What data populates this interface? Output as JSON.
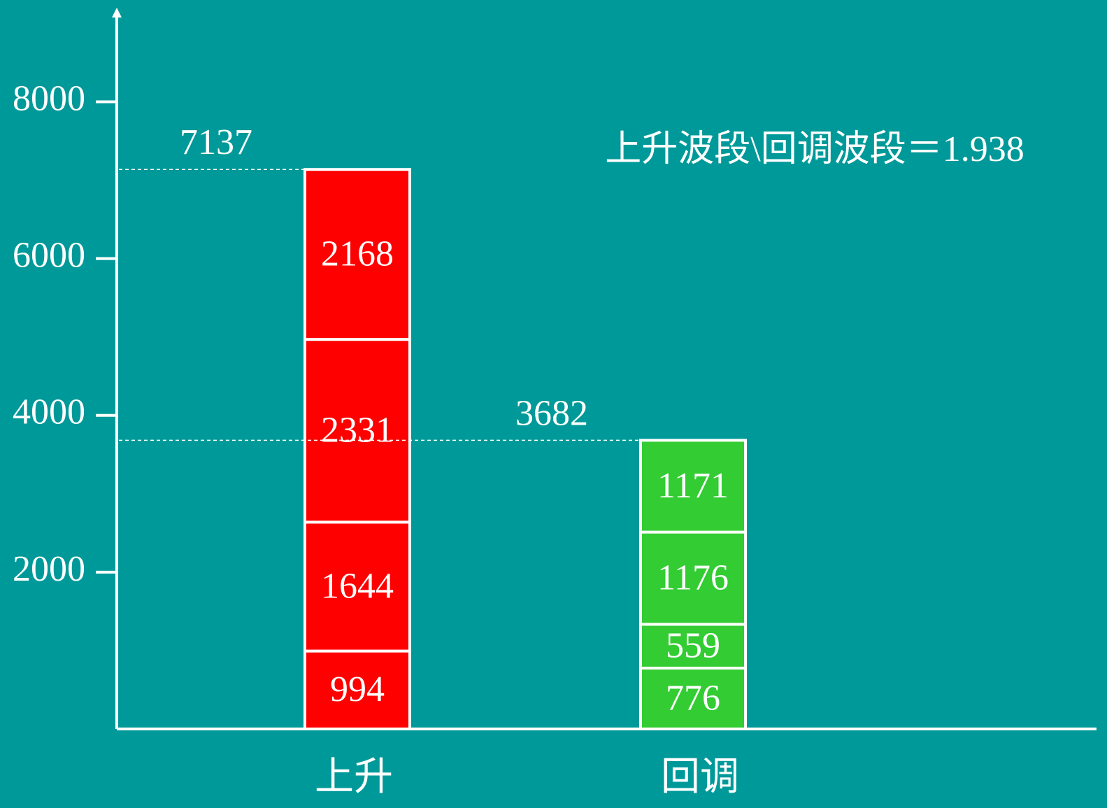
{
  "chart_data": {
    "type": "stacked-bar",
    "annotation": "上升波段\\回调波段＝1.938",
    "categories": [
      "上升",
      "回调"
    ],
    "colors": [
      "#ff0000",
      "#33cc33"
    ],
    "series": [
      {
        "values": [
          994,
          776
        ]
      },
      {
        "values": [
          1644,
          559
        ]
      },
      {
        "values": [
          2331,
          1176
        ]
      },
      {
        "values": [
          2168,
          1171
        ]
      }
    ],
    "totals": [
      7137,
      3682
    ],
    "ylim": [
      0,
      9200
    ],
    "yticks": [
      2000,
      4000,
      6000,
      8000
    ]
  }
}
